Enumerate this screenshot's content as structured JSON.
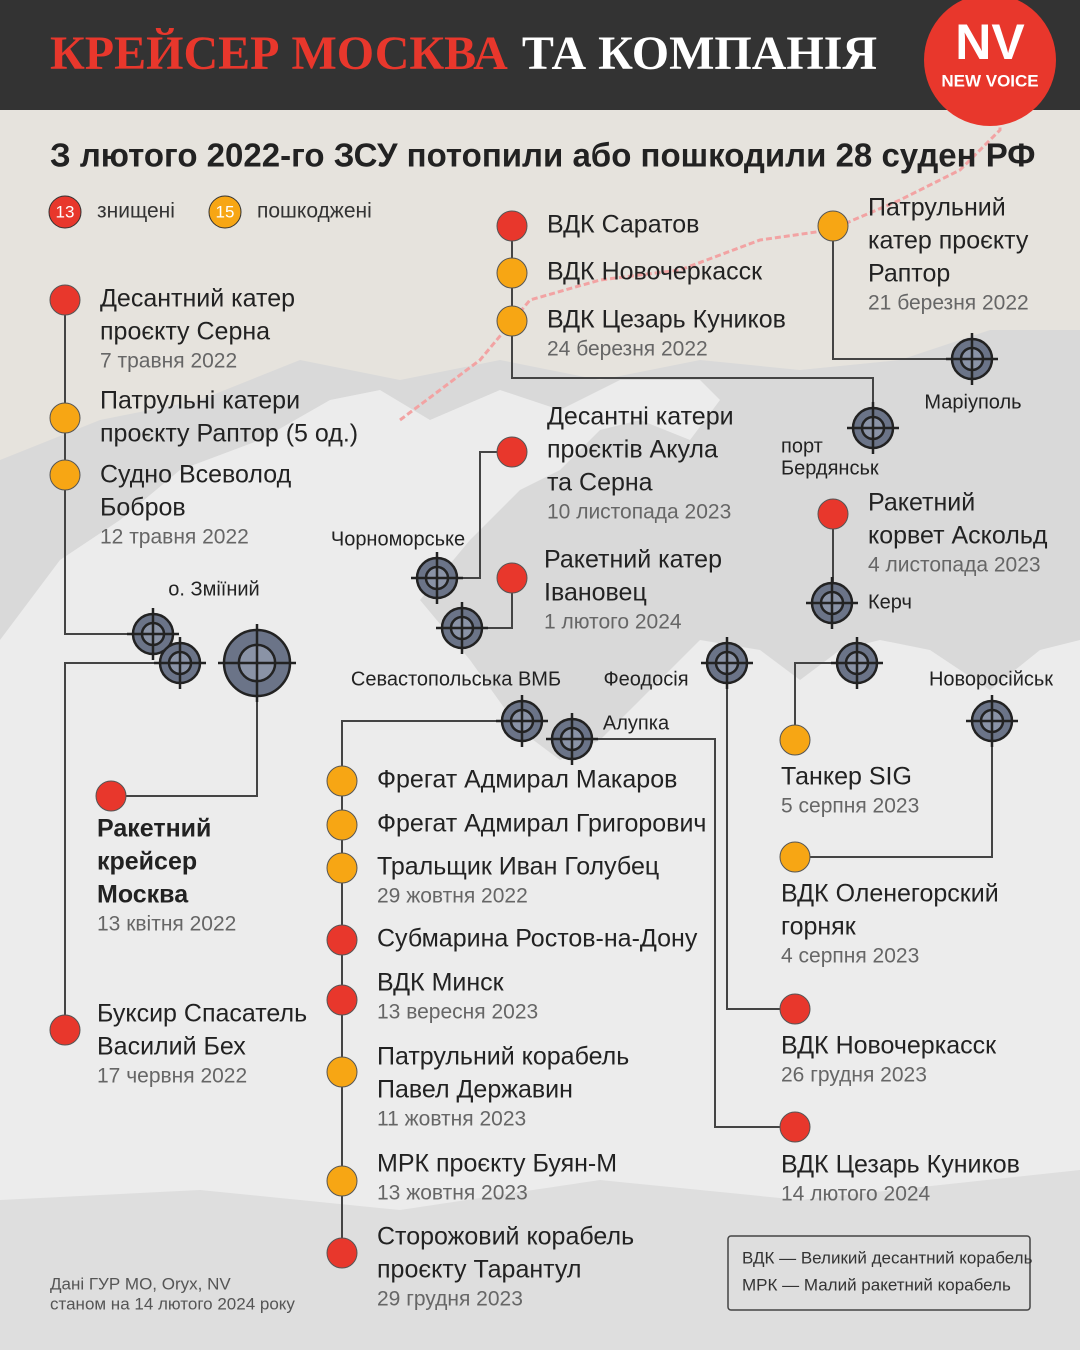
{
  "header": {
    "title_red": "КРЕЙСЕР МОСКВА",
    "title_white": "ТА КОМПАНІЯ",
    "logo_main": "NV",
    "logo_sub": "NEW VOICE"
  },
  "subtitle": "З лютого 2022-го ЗСУ потопили або пошкодили 28 суден РФ",
  "legend": [
    {
      "count": 13,
      "label": "знищені",
      "color": "#e8372c"
    },
    {
      "count": 15,
      "label": "пошкоджені",
      "color": "#f7a614"
    }
  ],
  "ports": [
    [
      "Маріуполь"
    ],
    [
      "порт",
      "Бердянськ"
    ],
    [
      "Чорноморське"
    ],
    [
      "о. Зміїний"
    ],
    [
      "Керч"
    ],
    [
      "Новоросійськ"
    ],
    [
      "Феодосія"
    ],
    [
      "Севастопольська ВМБ"
    ],
    [
      "Алупка"
    ]
  ],
  "ships": [
    {
      "name": [
        "Десантний катер",
        "проєкту Серна"
      ],
      "date": "7 травня 2022",
      "color": "#e8372c"
    },
    {
      "name": [
        "Патрульні катери",
        "проєкту Раптор (5 од.)"
      ],
      "color": "#f7a614"
    },
    {
      "name": [
        "Судно Всеволод",
        "Бобров"
      ],
      "date": "12 травня 2022",
      "color": "#f7a614"
    },
    {
      "name": [
        "Ракетний",
        "крейсер",
        "Москва"
      ],
      "date": "13 квітня 2022",
      "color": "#e8372c"
    },
    {
      "name": [
        "Буксир Спасатель",
        "Василий Бех"
      ],
      "date": "17 червня 2022",
      "color": "#e8372c"
    },
    {
      "name": [
        "ВДК Саратов"
      ],
      "color": "#e8372c"
    },
    {
      "name": [
        "ВДК Новочеркасск"
      ],
      "color": "#f7a614"
    },
    {
      "name": [
        "ВДК Цезарь Куников"
      ],
      "date": "24 березня 2022",
      "color": "#f7a614"
    },
    {
      "name": [
        "Патрульний",
        "катер проєкту",
        "Раптор"
      ],
      "date": "21 березня 2022",
      "color": "#f7a614"
    },
    {
      "name": [
        "Десантні катери",
        "проєктів Акула",
        "та Серна"
      ],
      "date": "10 листопада 2023",
      "color": "#e8372c"
    },
    {
      "name": [
        "Ракетний катер",
        "Івановец"
      ],
      "date": "1 лютого 2024",
      "color": "#e8372c"
    },
    {
      "name": [
        "Ракетний",
        "корвет Аскольд"
      ],
      "date": "4 листопада 2023",
      "color": "#e8372c"
    },
    {
      "name": [
        "Фрегат Адмирал Макаров"
      ],
      "color": "#f7a614"
    },
    {
      "name": [
        "Фрегат Адмирал Григорович"
      ],
      "color": "#f7a614"
    },
    {
      "name": [
        "Тральщик Иван Голубец"
      ],
      "date": "29 жовтня 2022",
      "color": "#f7a614"
    },
    {
      "name": [
        "Субмарина Ростов-на-Дону"
      ],
      "color": "#e8372c"
    },
    {
      "name": [
        "ВДК Минск"
      ],
      "date": "13 вересня 2023",
      "color": "#e8372c"
    },
    {
      "name": [
        "Патрульний корабель",
        "Павел Державин"
      ],
      "date": "11 жовтня 2023",
      "color": "#f7a614"
    },
    {
      "name": [
        "МРК проєкту Буян-М"
      ],
      "date": "13 жовтня 2023",
      "color": "#f7a614"
    },
    {
      "name": [
        "Сторожовий корабель",
        "проєкту Тарантул"
      ],
      "date": "29 грудня 2023",
      "color": "#e8372c"
    },
    {
      "name": [
        "Танкер SIG"
      ],
      "date": "5 серпня 2023",
      "color": "#f7a614"
    },
    {
      "name": [
        "ВДК Оленегорский",
        "горняк"
      ],
      "date": "4 серпня 2023",
      "color": "#f7a614"
    },
    {
      "name": [
        "ВДК Новочеркасск"
      ],
      "date": "26 грудня 2023",
      "color": "#e8372c"
    },
    {
      "name": [
        "ВДК Цезарь Куников"
      ],
      "date": "14 лютого 2024",
      "color": "#e8372c"
    }
  ],
  "source": [
    "Дані ГУР МО, Oryx, NV",
    "станом на 14 лютого 2024 року"
  ],
  "abbreviations": [
    "ВДК — Великий десантний корабель",
    "МРК — Малий ракетний корабель"
  ]
}
